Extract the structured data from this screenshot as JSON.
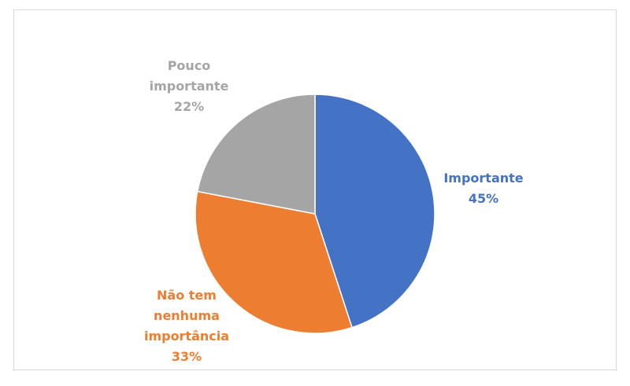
{
  "chart_data": {
    "type": "pie",
    "categories": [
      "Importante",
      "Não tem nenhuma importância",
      "Pouco importante"
    ],
    "values": [
      45,
      33,
      22
    ],
    "value_labels": [
      "45%",
      "33%",
      "22%"
    ],
    "colors": [
      "#4472c4",
      "#ed7d31",
      "#a5a5a5"
    ]
  }
}
